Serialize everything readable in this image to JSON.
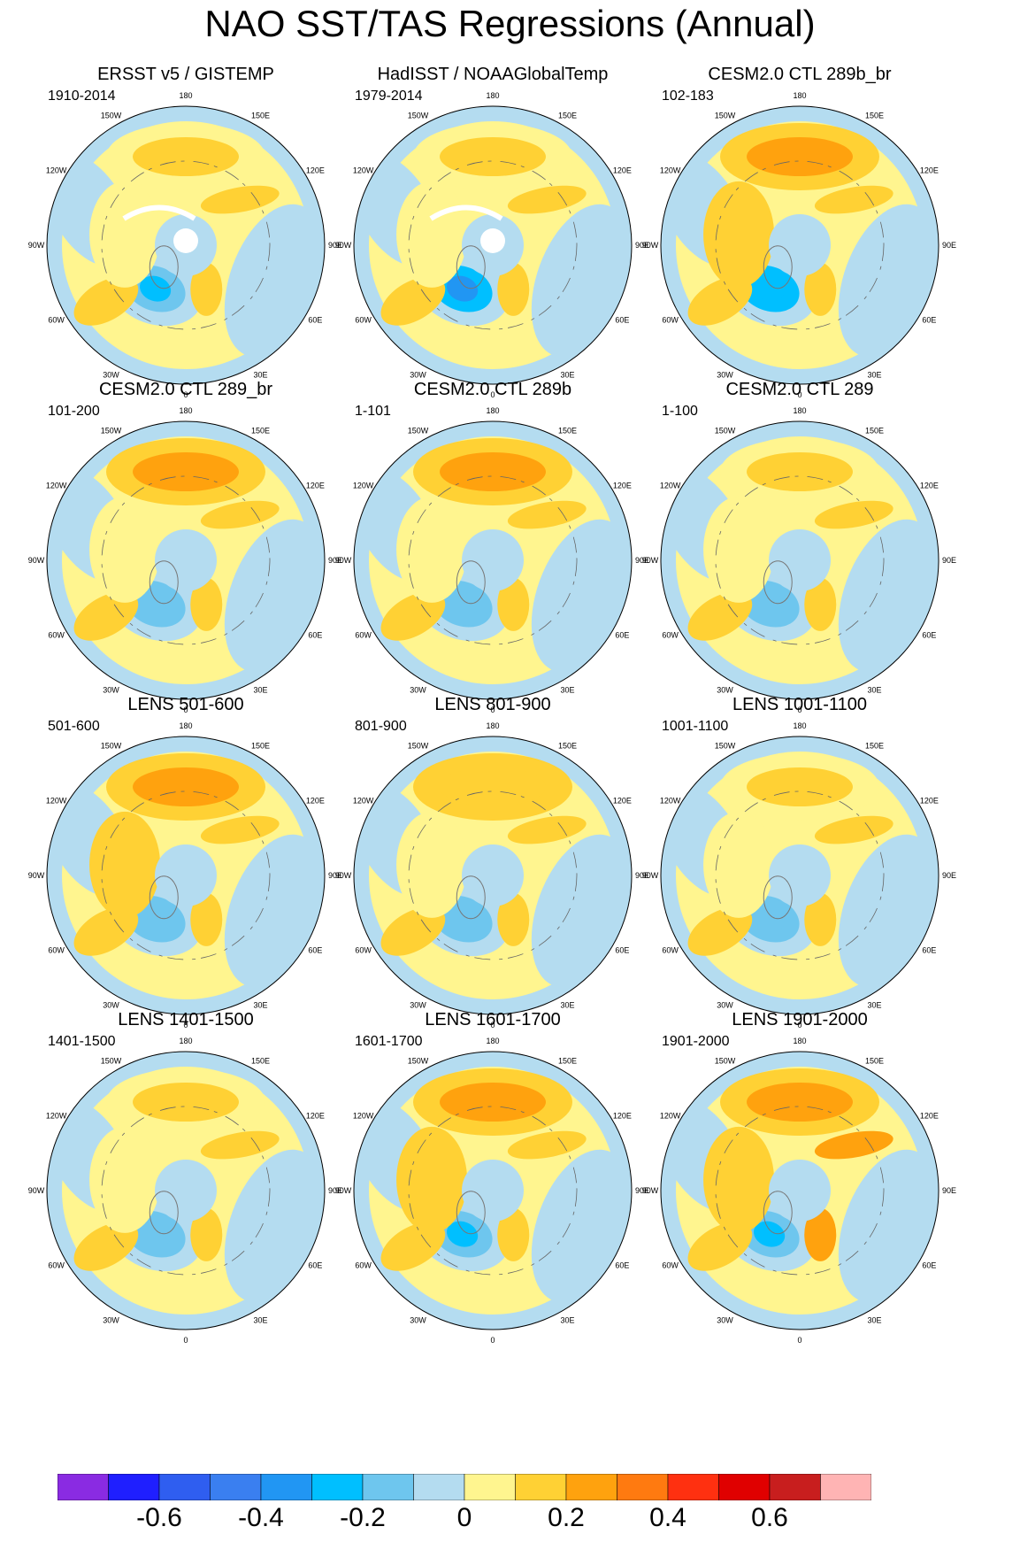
{
  "title": "NAO SST/TAS Regressions (Annual)",
  "chart_data": {
    "type": "polar-stereographic contour map grid",
    "projection": "Northern Hemisphere polar stereographic, 0 at bottom",
    "longitude_labels": [
      "180",
      "150E",
      "120E",
      "90E",
      "60E",
      "30E",
      "0",
      "30W",
      "60W",
      "90W",
      "120W",
      "150W"
    ],
    "panels": [
      {
        "title": "ERSST v5 / GISTEMP",
        "years": "1910-2014",
        "pattern": {
          "pac": 0.12,
          "natl": -0.25,
          "subtrop": 0.15,
          "eura": 0.12,
          "amer": 0.08,
          "missing": true
        }
      },
      {
        "title": "HadISST / NOAAGlobalTemp",
        "years": "1979-2014",
        "pattern": {
          "pac": 0.12,
          "natl": -0.35,
          "subtrop": 0.15,
          "eura": 0.1,
          "amer": 0.05,
          "missing": true
        }
      },
      {
        "title": "CESM2.0 CTL 289b_br",
        "years": "102-183",
        "pattern": {
          "pac": 0.25,
          "natl": -0.3,
          "subtrop": 0.12,
          "eura": 0.15,
          "amer": 0.1,
          "missing": false
        }
      },
      {
        "title": "CESM2.0 CTL 289_br",
        "years": "101-200",
        "pattern": {
          "pac": 0.22,
          "natl": -0.2,
          "subtrop": 0.15,
          "eura": 0.15,
          "amer": 0.08,
          "missing": false
        }
      },
      {
        "title": "CESM2.0 CTL 289b",
        "years": "1-101",
        "pattern": {
          "pac": 0.2,
          "natl": -0.2,
          "subtrop": 0.15,
          "eura": 0.15,
          "amer": 0.08,
          "missing": false
        }
      },
      {
        "title": "CESM2.0 CTL 289",
        "years": "1-100",
        "pattern": {
          "pac": 0.1,
          "natl": -0.15,
          "subtrop": 0.12,
          "eura": 0.12,
          "amer": 0.05,
          "missing": false
        }
      },
      {
        "title": "LENS 501-600",
        "years": "501-600",
        "pattern": {
          "pac": 0.22,
          "natl": -0.2,
          "subtrop": 0.12,
          "eura": 0.18,
          "amer": 0.1,
          "missing": false
        }
      },
      {
        "title": "LENS 801-900",
        "years": "801-900",
        "pattern": {
          "pac": 0.18,
          "natl": -0.18,
          "subtrop": 0.1,
          "eura": 0.18,
          "amer": 0.08,
          "missing": false
        }
      },
      {
        "title": "LENS 1001-1100",
        "years": "1001-1100",
        "pattern": {
          "pac": 0.12,
          "natl": -0.2,
          "subtrop": 0.1,
          "eura": 0.15,
          "amer": 0.06,
          "missing": false
        }
      },
      {
        "title": "LENS 1401-1500",
        "years": "1401-1500",
        "pattern": {
          "pac": 0.15,
          "natl": -0.2,
          "subtrop": 0.12,
          "eura": 0.15,
          "amer": 0.08,
          "missing": false
        }
      },
      {
        "title": "LENS 1601-1700",
        "years": "1601-1700",
        "pattern": {
          "pac": 0.25,
          "natl": -0.25,
          "subtrop": 0.15,
          "eura": 0.18,
          "amer": 0.1,
          "missing": false
        }
      },
      {
        "title": "LENS 1901-2000",
        "years": "1901-2000",
        "pattern": {
          "pac": 0.28,
          "natl": -0.25,
          "subtrop": 0.15,
          "eura": 0.2,
          "amer": 0.1,
          "missing": false
        }
      }
    ],
    "colorbar": {
      "levels": [
        -0.7,
        -0.6,
        -0.5,
        -0.4,
        -0.3,
        -0.2,
        -0.1,
        0,
        0.1,
        0.2,
        0.3,
        0.4,
        0.5,
        0.6,
        0.7
      ],
      "colors": [
        "#8a2be2",
        "#1f1fff",
        "#2f5ef0",
        "#3a7ff0",
        "#2196f3",
        "#00bfff",
        "#6ec6ee",
        "#b4dcf0",
        "#fff58f",
        "#ffd134",
        "#ffa20e",
        "#ff7a10",
        "#ff3010",
        "#e00000",
        "#c81e1e",
        "#ffb4b4"
      ],
      "tick_labels": [
        "-0.6",
        "-0.4",
        "-0.2",
        "0",
        "0.2",
        "0.4",
        "0.6"
      ],
      "tick_values": [
        -0.6,
        -0.4,
        -0.2,
        0,
        0.2,
        0.4,
        0.6
      ]
    }
  }
}
